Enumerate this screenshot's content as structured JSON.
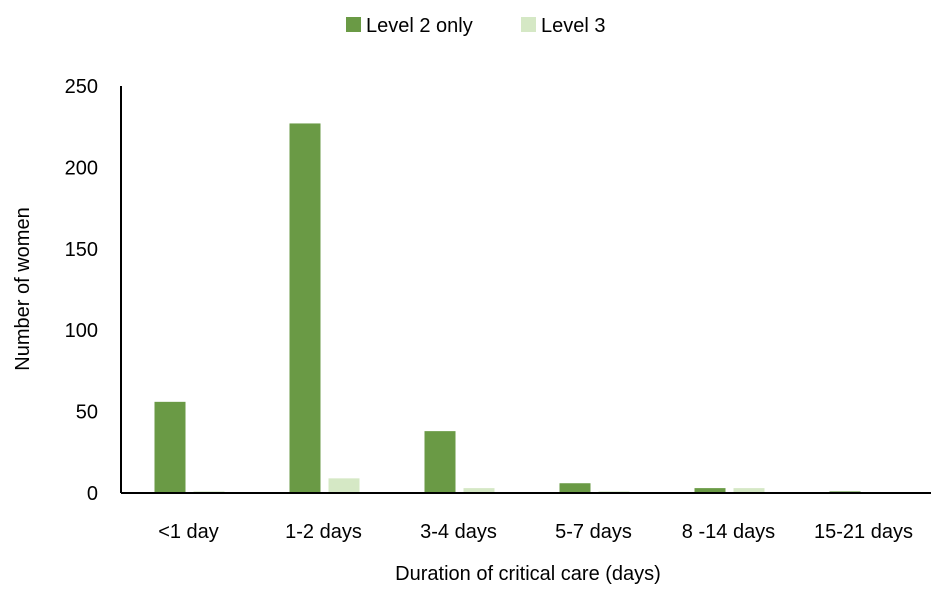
{
  "chart_data": {
    "type": "bar",
    "title": "",
    "xlabel": "Duration of critical care (days)",
    "ylabel": "Number of women",
    "categories": [
      "<1 day",
      "1-2 days",
      "3-4 days",
      "5-7 days",
      "8 -14 days",
      "15-21 days"
    ],
    "series": [
      {
        "name": "Level 2 only",
        "values": [
          56,
          227,
          38,
          6,
          3,
          1
        ],
        "color": "#6a9a45"
      },
      {
        "name": "Level 3",
        "values": [
          1,
          9,
          3,
          1,
          3,
          0
        ],
        "color": "#d5e8c5"
      }
    ],
    "ylim": [
      0,
      250
    ],
    "yticks": [
      0,
      50,
      100,
      150,
      200,
      250
    ],
    "grid": false,
    "legend_position": "top-center"
  }
}
